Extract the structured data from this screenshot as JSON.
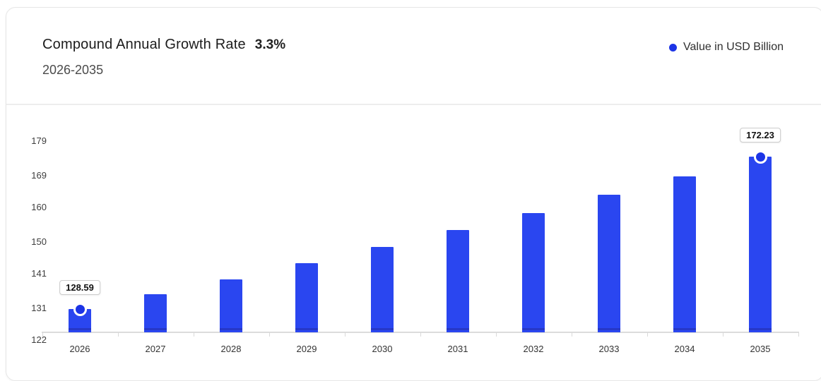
{
  "card": {
    "header": {
      "title": "Compound Annual Growth Rate",
      "cagr": "3.3%",
      "period": "2026-2035",
      "legend": {
        "label": "Value in USD Billion"
      }
    }
  },
  "colors": {
    "bar": "#2a46f0",
    "bar_stripe": "#2638c8",
    "marker": "#1c34e6",
    "legend_dot": "#1c34e6",
    "axis_line": "#dcdcdc",
    "label_box_border": "#cccccc"
  },
  "chart_data": {
    "type": "bar",
    "title": "Compound Annual Growth Rate 3.3%",
    "subtitle": "2026-2035",
    "categories": [
      "2026",
      "2027",
      "2028",
      "2029",
      "2030",
      "2031",
      "2032",
      "2033",
      "2034",
      "2035"
    ],
    "series": [
      {
        "name": "Value in USD Billion",
        "values": [
          128.59,
          132.83,
          137.22,
          141.74,
          146.42,
          151.25,
          156.24,
          161.4,
          166.72,
          172.23
        ]
      }
    ],
    "point_labels": [
      {
        "category": "2026",
        "value": 128.59,
        "label": "128.59"
      },
      {
        "category": "2035",
        "value": 172.23,
        "label": "172.23"
      }
    ],
    "xlabel": "",
    "ylabel": "Value in USD Billion",
    "ylim": [
      122,
      179
    ],
    "yticks": [
      "122",
      "131",
      "141",
      "150",
      "160",
      "169",
      "179"
    ],
    "grid": false,
    "legend_position": "top-right"
  }
}
